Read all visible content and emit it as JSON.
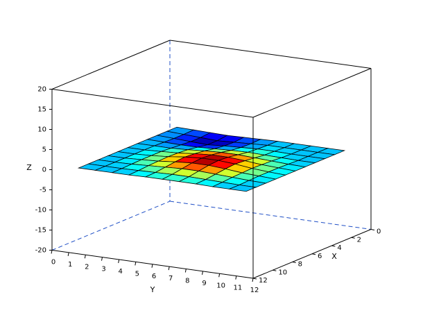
{
  "chart_data": {
    "type": "surface",
    "x_label": "X",
    "y_label": "Y",
    "z_label": "Z",
    "xlim": [
      0,
      12
    ],
    "ylim": [
      0,
      12
    ],
    "zlim": [
      -20,
      20
    ],
    "xticks": [
      0,
      2,
      4,
      6,
      8,
      10,
      12
    ],
    "yticks": [
      0,
      1,
      2,
      3,
      4,
      5,
      6,
      7,
      8,
      9,
      10,
      11,
      12
    ],
    "zticks": [
      -20,
      -15,
      -10,
      -5,
      0,
      5,
      10,
      15,
      20
    ],
    "colormap": "jet",
    "x": [
      1,
      2,
      3,
      4,
      5,
      6,
      7,
      8,
      9,
      10,
      11
    ],
    "y": [
      1,
      2,
      3,
      4,
      5,
      6,
      7,
      8,
      9,
      10,
      11
    ],
    "z": [
      [
        0,
        -0.1,
        -0.2,
        -0.3,
        -0.2,
        -0.1,
        0,
        0,
        0,
        0,
        0
      ],
      [
        0,
        -0.2,
        -0.4,
        -0.6,
        -0.4,
        -0.2,
        0,
        0,
        0,
        0,
        0
      ],
      [
        0,
        -0.2,
        -0.4,
        -0.6,
        -0.3,
        -0.1,
        0.1,
        0.1,
        0,
        0,
        0
      ],
      [
        0,
        -0.1,
        -0.2,
        -0.2,
        0,
        0.2,
        0.3,
        0.2,
        0.1,
        0,
        0
      ],
      [
        0,
        0,
        0,
        0.2,
        0.5,
        0.7,
        0.7,
        0.5,
        0.3,
        0.1,
        0
      ],
      [
        0,
        0,
        0.2,
        0.4,
        0.8,
        1.1,
        1.1,
        0.8,
        0.4,
        0.2,
        0
      ],
      [
        0,
        0,
        0.2,
        0.5,
        1,
        1.3,
        1.3,
        1,
        0.5,
        0.2,
        0
      ],
      [
        0,
        0,
        0.2,
        0.4,
        0.8,
        1.1,
        1.1,
        0.8,
        0.4,
        0.2,
        0
      ],
      [
        0,
        0,
        0.1,
        0.3,
        0.5,
        0.7,
        0.7,
        0.5,
        0.3,
        0.1,
        0
      ],
      [
        0,
        0,
        0,
        0.1,
        0.2,
        0.3,
        0.3,
        0.2,
        0.1,
        0,
        0
      ],
      [
        0,
        0,
        0,
        0,
        0.1,
        0.1,
        0.1,
        0.1,
        0,
        0,
        0
      ]
    ]
  }
}
